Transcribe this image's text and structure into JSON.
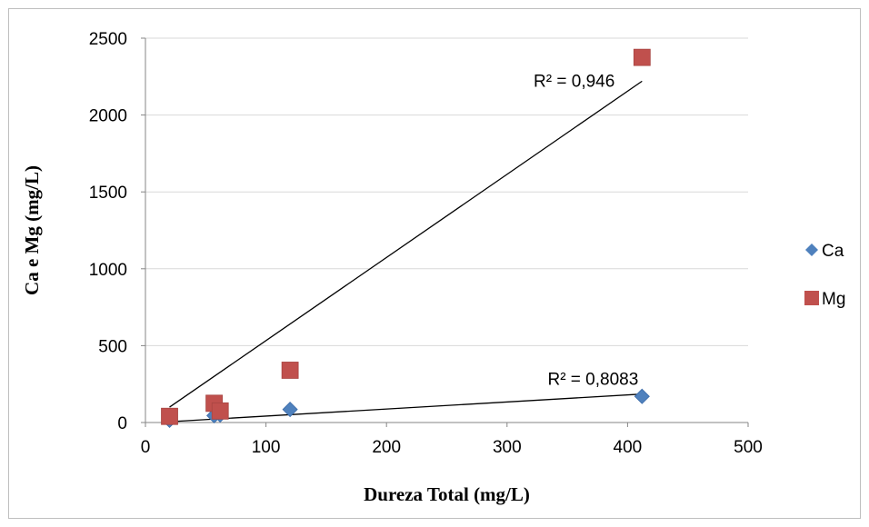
{
  "chart_data": {
    "type": "scatter",
    "xlabel": "Dureza Total (mg/L)",
    "ylabel": "Ca e Mg (mg/L)",
    "xlim": [
      0,
      500
    ],
    "ylim": [
      0,
      2500
    ],
    "x_ticks": [
      0,
      100,
      200,
      300,
      400,
      500
    ],
    "y_ticks": [
      0,
      500,
      1000,
      1500,
      2000,
      2500
    ],
    "grid": "horizontal",
    "legend": "right",
    "series": [
      {
        "name": "Ca",
        "marker": "diamond",
        "color": "#4f81bd",
        "points": [
          [
            20,
            15
          ],
          [
            57,
            45
          ],
          [
            62,
            50
          ],
          [
            120,
            85
          ],
          [
            412,
            170
          ]
        ],
        "trendline": {
          "x": [
            20,
            412
          ],
          "y": [
            5,
            185
          ]
        },
        "r2_label": "R² = 0,8083"
      },
      {
        "name": "Mg",
        "marker": "square",
        "color": "#c0504d",
        "points": [
          [
            20,
            40
          ],
          [
            57,
            125
          ],
          [
            62,
            75
          ],
          [
            120,
            340
          ],
          [
            412,
            2375
          ]
        ],
        "trendline": {
          "x": [
            20,
            412
          ],
          "y": [
            100,
            2220
          ]
        },
        "r2_label": "R² = 0,946"
      }
    ]
  }
}
